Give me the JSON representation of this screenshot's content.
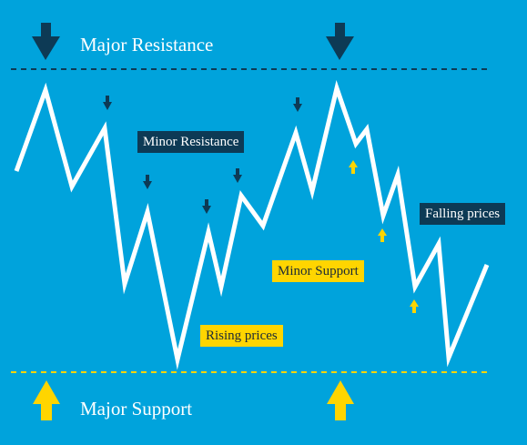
{
  "colors": {
    "background": "#00a3dc",
    "price_line": "#ffffff",
    "resistance": "#0d3a55",
    "support": "#ffd500"
  },
  "labels": {
    "major_resistance": "Major Resistance",
    "major_support": "Major Support",
    "minor_resistance": "Minor Resistance",
    "minor_support": "Minor Support",
    "rising_prices": "Rising prices",
    "falling_prices": "Falling prices"
  },
  "icons": {
    "major_resistance_arrows": "arrow-down-icon",
    "major_support_arrows": "arrow-up-icon",
    "minor_resistance_arrows": "small-arrow-down-icon",
    "minor_support_arrows": "small-arrow-up-icon"
  }
}
